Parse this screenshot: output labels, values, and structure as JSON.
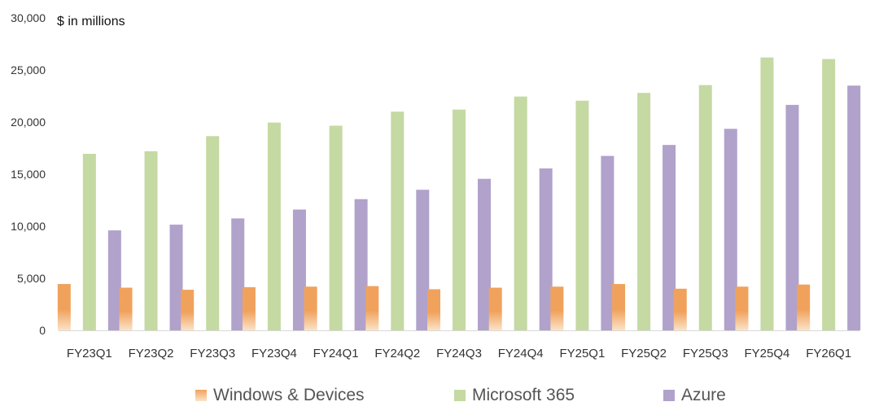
{
  "chart_data": {
    "type": "bar",
    "unit_label": "$ in millions",
    "categories": [
      "FY23Q1",
      "FY23Q2",
      "FY23Q3",
      "FY23Q4",
      "FY24Q1",
      "FY24Q2",
      "FY24Q3",
      "FY24Q4",
      "FY25Q1",
      "FY25Q2",
      "FY25Q3",
      "FY25Q4",
      "FY26Q1"
    ],
    "ylim": [
      0,
      30000
    ],
    "yticks": [
      0,
      5000,
      10000,
      15000,
      20000,
      25000,
      30000
    ],
    "ytick_labels": [
      "0",
      "5,000",
      "10,000",
      "15,000",
      "20,000",
      "25,000",
      "30,000"
    ],
    "grid": false,
    "legend_position": "bottom",
    "series": [
      {
        "name": "Windows & Devices",
        "color": "#f0a25c",
        "color_light": "#fbe3c8",
        "values": [
          4450,
          4100,
          3900,
          4150,
          4200,
          4250,
          3950,
          4100,
          4200,
          4450,
          4000,
          4200,
          4400
        ]
      },
      {
        "name": "Microsoft 365",
        "color": "#c5d9a3",
        "values": [
          16950,
          17200,
          18650,
          19950,
          19650,
          21000,
          21200,
          22450,
          22050,
          22800,
          23550,
          26200,
          26050
        ]
      },
      {
        "name": "Azure",
        "color": "#b0a2cb",
        "values": [
          9600,
          10150,
          10750,
          11600,
          12600,
          13500,
          14550,
          15550,
          16750,
          17800,
          19350,
          21650,
          23500
        ]
      }
    ]
  }
}
